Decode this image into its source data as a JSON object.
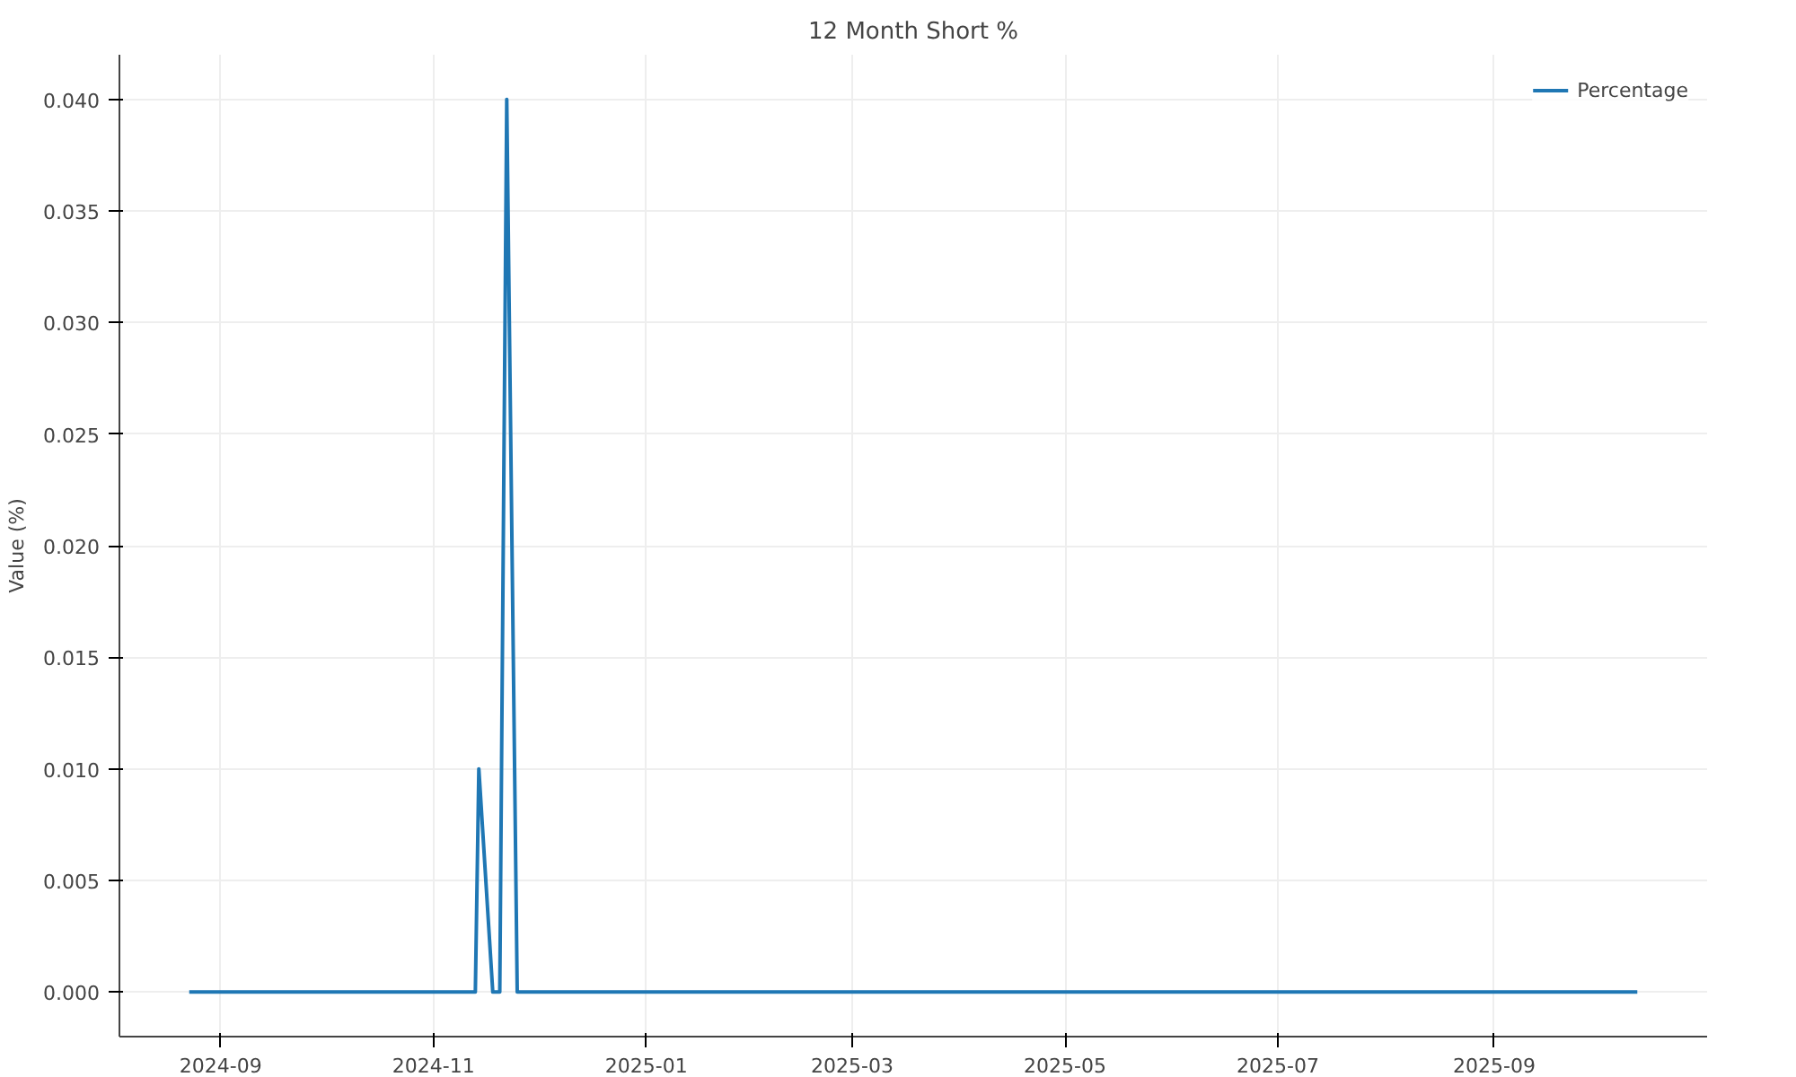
{
  "chart_data": {
    "type": "line",
    "title": "12 Month Short %",
    "ylabel": "Value (%)",
    "x": [
      "2024-08-23",
      "2024-11-13",
      "2024-11-14",
      "2024-11-18",
      "2024-11-20",
      "2024-11-22",
      "2024-11-25",
      "2025-10-12"
    ],
    "series": [
      {
        "name": "Percentage",
        "color": "#1f77b4",
        "values": [
          0,
          0,
          0.01,
          0,
          0,
          0.04,
          0,
          0
        ]
      }
    ],
    "xlim": [
      "2024-08-03",
      "2025-11-01"
    ],
    "xticks": [
      {
        "value": "2024-09-01",
        "label": "2024-09"
      },
      {
        "value": "2024-11-01",
        "label": "2024-11"
      },
      {
        "value": "2025-01-01",
        "label": "2025-01"
      },
      {
        "value": "2025-03-01",
        "label": "2025-03"
      },
      {
        "value": "2025-05-01",
        "label": "2025-05"
      },
      {
        "value": "2025-07-01",
        "label": "2025-07"
      },
      {
        "value": "2025-09-01",
        "label": "2025-09"
      }
    ],
    "ylim": [
      -0.002,
      0.042
    ],
    "yticks": [
      {
        "value": 0,
        "label": "0.000"
      },
      {
        "value": 0.005,
        "label": "0.005"
      },
      {
        "value": 0.01,
        "label": "0.010"
      },
      {
        "value": 0.015,
        "label": "0.015"
      },
      {
        "value": 0.02,
        "label": "0.020"
      },
      {
        "value": 0.025,
        "label": "0.025"
      },
      {
        "value": 0.03,
        "label": "0.030"
      },
      {
        "value": 0.035,
        "label": "0.035"
      },
      {
        "value": 0.04,
        "label": "0.040"
      }
    ],
    "grid": true,
    "legend": "top right",
    "line_style": "solid",
    "marker": "none"
  }
}
